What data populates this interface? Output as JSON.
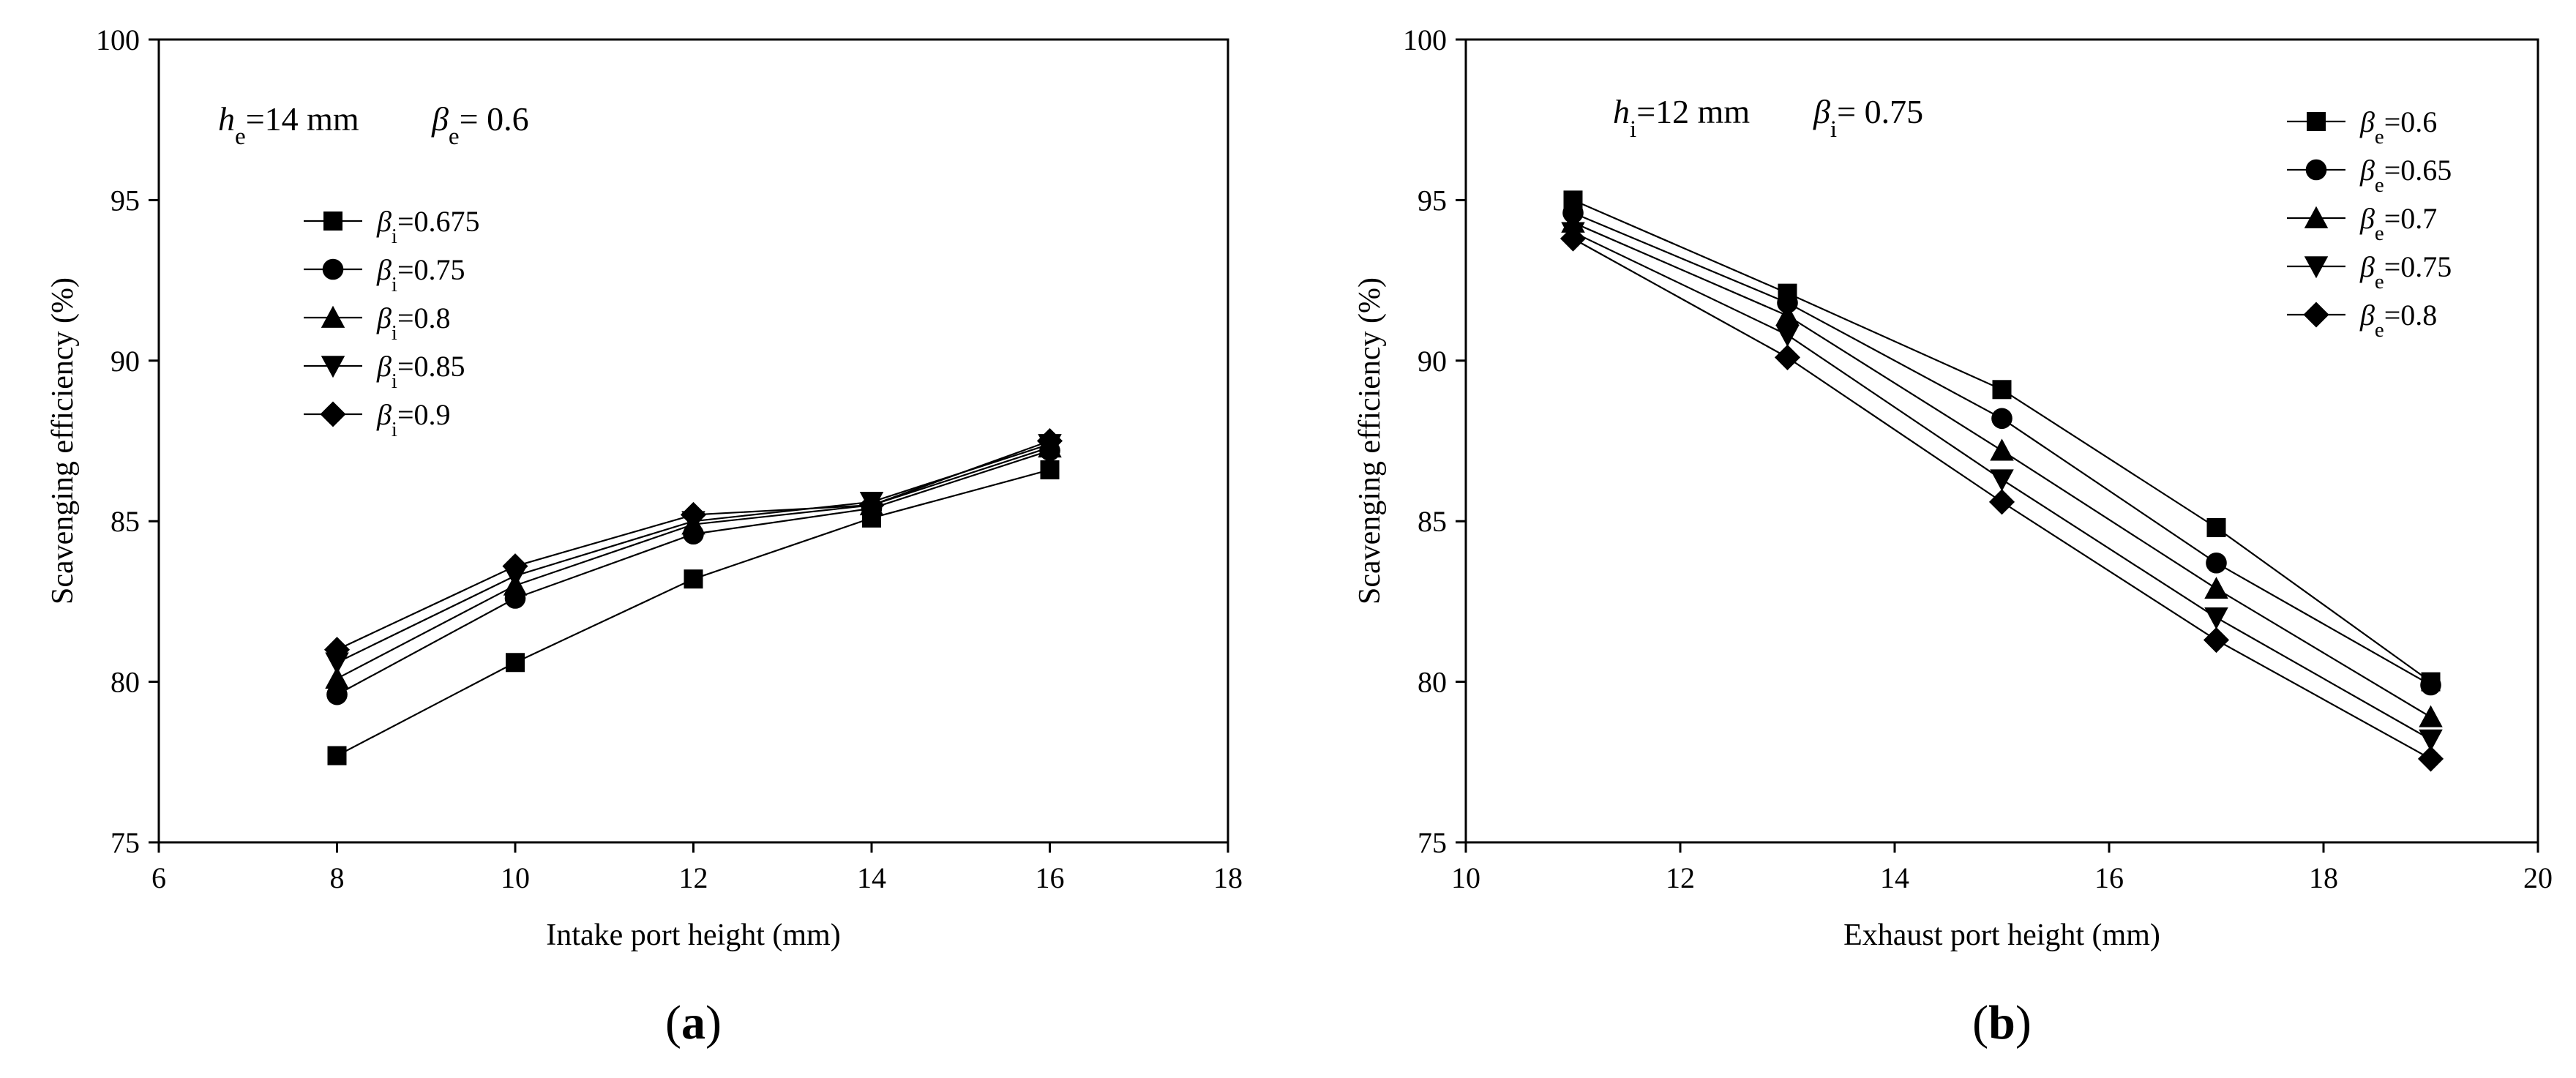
{
  "chart_data": [
    {
      "type": "line",
      "panel_label": "(a)",
      "xlabel": "Intake port height (mm)",
      "ylabel": "Scavenging efficiency (%)",
      "xlim": [
        6,
        18
      ],
      "ylim": [
        75,
        100
      ],
      "xticks": [
        6,
        8,
        10,
        12,
        14,
        16,
        18
      ],
      "yticks": [
        75,
        80,
        85,
        90,
        95,
        100
      ],
      "legend_position": "upper-left",
      "annotation": {
        "h_symbol": "h",
        "h_sub": "e",
        "h_value": "=14 mm",
        "beta_symbol": "β",
        "beta_sub": "e",
        "beta_value": "= 0.6"
      },
      "x": [
        8,
        10,
        12,
        14,
        16
      ],
      "series": [
        {
          "name": "βi=0.675",
          "symbol": "β",
          "sub": "i",
          "value": "=0.675",
          "marker": "square",
          "values": [
            77.7,
            80.6,
            83.2,
            85.1,
            86.6
          ]
        },
        {
          "name": "βi=0.75",
          "symbol": "β",
          "sub": "i",
          "value": "=0.75",
          "marker": "circle",
          "values": [
            79.6,
            82.6,
            84.6,
            85.4,
            87.2
          ]
        },
        {
          "name": "βi=0.8",
          "symbol": "β",
          "sub": "i",
          "value": "=0.8",
          "marker": "triangle-up",
          "values": [
            80.1,
            83.0,
            84.9,
            85.5,
            87.3
          ]
        },
        {
          "name": "βi=0.85",
          "symbol": "β",
          "sub": "i",
          "value": "=0.85",
          "marker": "triangle-down",
          "values": [
            80.6,
            83.3,
            85.0,
            85.6,
            87.4
          ]
        },
        {
          "name": "βi=0.9",
          "symbol": "β",
          "sub": "i",
          "value": "=0.9",
          "marker": "diamond",
          "values": [
            81.0,
            83.6,
            85.2,
            85.5,
            87.5
          ]
        }
      ]
    },
    {
      "type": "line",
      "panel_label": "(b)",
      "xlabel": "Exhaust port height (mm)",
      "ylabel": "Scavenging efficiency (%)",
      "xlim": [
        10,
        20
      ],
      "ylim": [
        75,
        100
      ],
      "xticks": [
        10,
        12,
        14,
        16,
        18,
        20
      ],
      "yticks": [
        75,
        80,
        85,
        90,
        95,
        100
      ],
      "legend_position": "upper-right",
      "annotation": {
        "h_symbol": "h",
        "h_sub": "i",
        "h_value": "=12 mm",
        "beta_symbol": "β",
        "beta_sub": "i",
        "beta_value": "= 0.75"
      },
      "x": [
        11,
        13,
        15,
        17,
        19
      ],
      "series": [
        {
          "name": "βe=0.6",
          "symbol": "β",
          "sub": "e",
          "value": "=0.6",
          "marker": "square",
          "values": [
            95.0,
            92.1,
            89.1,
            84.8,
            80.0
          ]
        },
        {
          "name": "βe=0.65",
          "symbol": "β",
          "sub": "e",
          "value": "=0.65",
          "marker": "circle",
          "values": [
            94.6,
            91.8,
            88.2,
            83.7,
            79.9
          ]
        },
        {
          "name": "βe=0.7",
          "symbol": "β",
          "sub": "e",
          "value": "=0.7",
          "marker": "triangle-up",
          "values": [
            94.3,
            91.4,
            87.2,
            82.9,
            78.9
          ]
        },
        {
          "name": "βe=0.75",
          "symbol": "β",
          "sub": "e",
          "value": "=0.75",
          "marker": "triangle-down",
          "values": [
            94.0,
            90.8,
            86.3,
            82.0,
            78.2
          ]
        },
        {
          "name": "βe=0.8",
          "symbol": "β",
          "sub": "e",
          "value": "=0.8",
          "marker": "diamond",
          "values": [
            93.8,
            90.1,
            85.6,
            81.3,
            77.6
          ]
        }
      ]
    }
  ]
}
